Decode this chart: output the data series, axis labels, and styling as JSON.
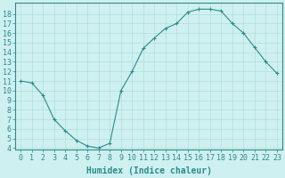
{
  "x": [
    0,
    1,
    2,
    3,
    4,
    5,
    6,
    7,
    8,
    9,
    10,
    11,
    12,
    13,
    14,
    15,
    16,
    17,
    18,
    19,
    20,
    21,
    22,
    23
  ],
  "y": [
    11,
    10.8,
    9.5,
    7,
    5.8,
    4.8,
    4.2,
    4.0,
    4.5,
    10.0,
    12.0,
    14.4,
    15.5,
    16.5,
    17.0,
    18.2,
    18.5,
    18.5,
    18.3,
    17.0,
    16.0,
    14.5,
    13.0,
    11.8
  ],
  "line_color": "#2d8b8b",
  "marker": "+",
  "bg_color": "#cff0f0",
  "grid_color": "#b0dede",
  "xlabel": "Humidex (Indice chaleur)",
  "ylim": [
    3.8,
    19.2
  ],
  "xlim": [
    -0.5,
    23.5
  ],
  "yticks": [
    4,
    5,
    6,
    7,
    8,
    9,
    10,
    11,
    12,
    13,
    14,
    15,
    16,
    17,
    18
  ],
  "xticks": [
    0,
    1,
    2,
    3,
    4,
    5,
    6,
    7,
    8,
    9,
    10,
    11,
    12,
    13,
    14,
    15,
    16,
    17,
    18,
    19,
    20,
    21,
    22,
    23
  ],
  "tick_color": "#2d8b8b",
  "label_color": "#2d8b8b",
  "font_size": 6,
  "xlabel_font_size": 7
}
